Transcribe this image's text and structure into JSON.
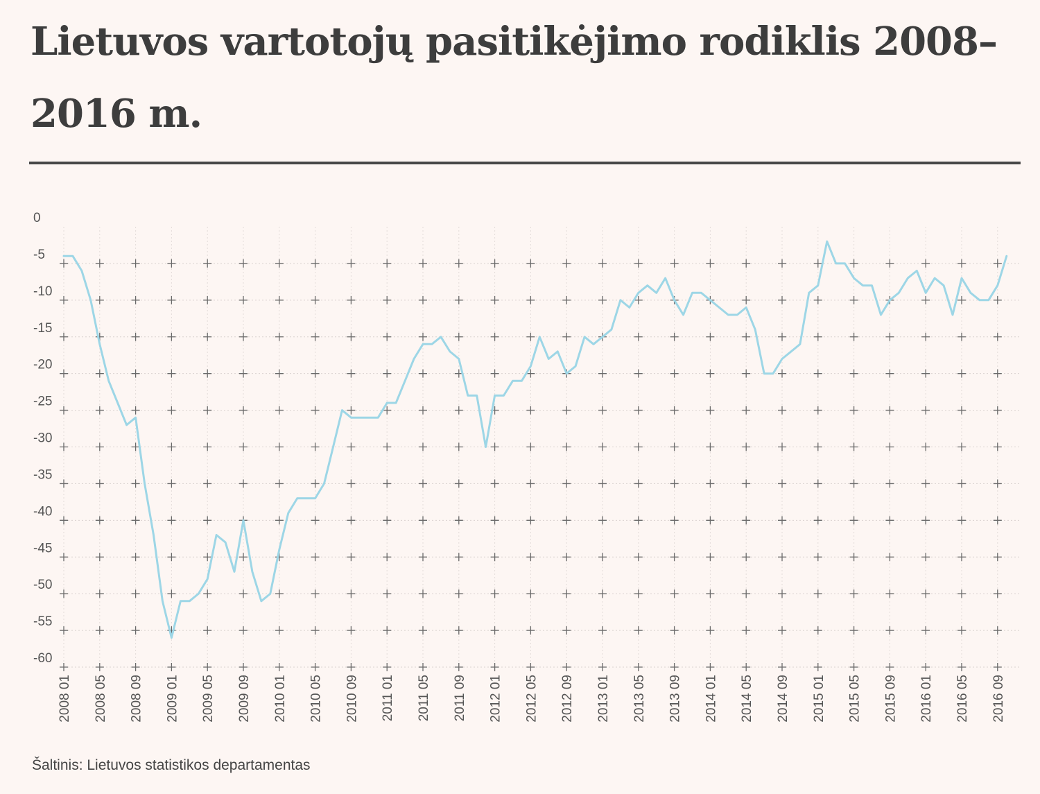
{
  "title": "Lietuvos vartotojų pasitikėjimo rodiklis 2008–2016 m.",
  "source": "Šaltinis: Lietuvos statistikos departamentas",
  "chart_data": {
    "type": "line",
    "title": "Lietuvos vartotojų pasitikėjimo rodiklis 2008–2016 m.",
    "xlabel": "",
    "ylabel": "",
    "ylim": [
      -60,
      0
    ],
    "y_ticks": [
      0,
      -5,
      -10,
      -15,
      -20,
      -25,
      -30,
      -35,
      -40,
      -45,
      -50,
      -55,
      -60
    ],
    "y_tick_labels": [
      "0",
      "-5",
      "-10",
      "-15",
      "-20",
      "-25",
      "-30",
      "-35",
      "-40",
      "-45",
      "-50",
      "-55",
      "-60"
    ],
    "x_tick_labels": [
      "2008 01",
      "2008 05",
      "2008 09",
      "2009 01",
      "2009 05",
      "2009 09",
      "2010 01",
      "2010 05",
      "2010 09",
      "2011 01",
      "2011 05",
      "2011 09",
      "2012 01",
      "2012 05",
      "2012 09",
      "2013 01",
      "2013 05",
      "2013 09",
      "2014 01",
      "2014 05",
      "2014 09",
      "2015 01",
      "2015 05",
      "2015 09",
      "2016 01",
      "2016 05",
      "2016 09"
    ],
    "grid": true,
    "line_color": "#9dd6e6",
    "series": [
      {
        "start": "2008 01",
        "values": [
          -4,
          -4,
          -6,
          -10,
          -16,
          -21,
          -24,
          -27,
          -26,
          -35,
          -42,
          -51,
          -56,
          -51,
          -51,
          -50,
          -48,
          -42,
          -43,
          -47,
          -40,
          -47,
          -51,
          -50,
          -44,
          -39,
          -37,
          -37,
          -37,
          -35,
          -30,
          -25,
          -26,
          -26,
          -26,
          -26,
          -24,
          -24,
          -21,
          -18,
          -16,
          -16,
          -15,
          -17,
          -18,
          -23,
          -23,
          -30,
          -23,
          -23,
          -21,
          -21,
          -19,
          -15,
          -18,
          -17,
          -20,
          -19,
          -15,
          -16,
          -15,
          -14,
          -10,
          -11,
          -9,
          -8,
          -9,
          -7,
          -10,
          -12,
          -9,
          -9,
          -10,
          -11,
          -12,
          -12,
          -11,
          -14,
          -20,
          -20,
          -18,
          -17,
          -16,
          -9,
          -8,
          -2,
          -5,
          -5,
          -7,
          -8,
          -8,
          -12,
          -10,
          -9,
          -7,
          -6,
          -9,
          -7,
          -8,
          -12,
          -7,
          -9,
          -10,
          -10,
          -8,
          -4
        ]
      }
    ]
  }
}
